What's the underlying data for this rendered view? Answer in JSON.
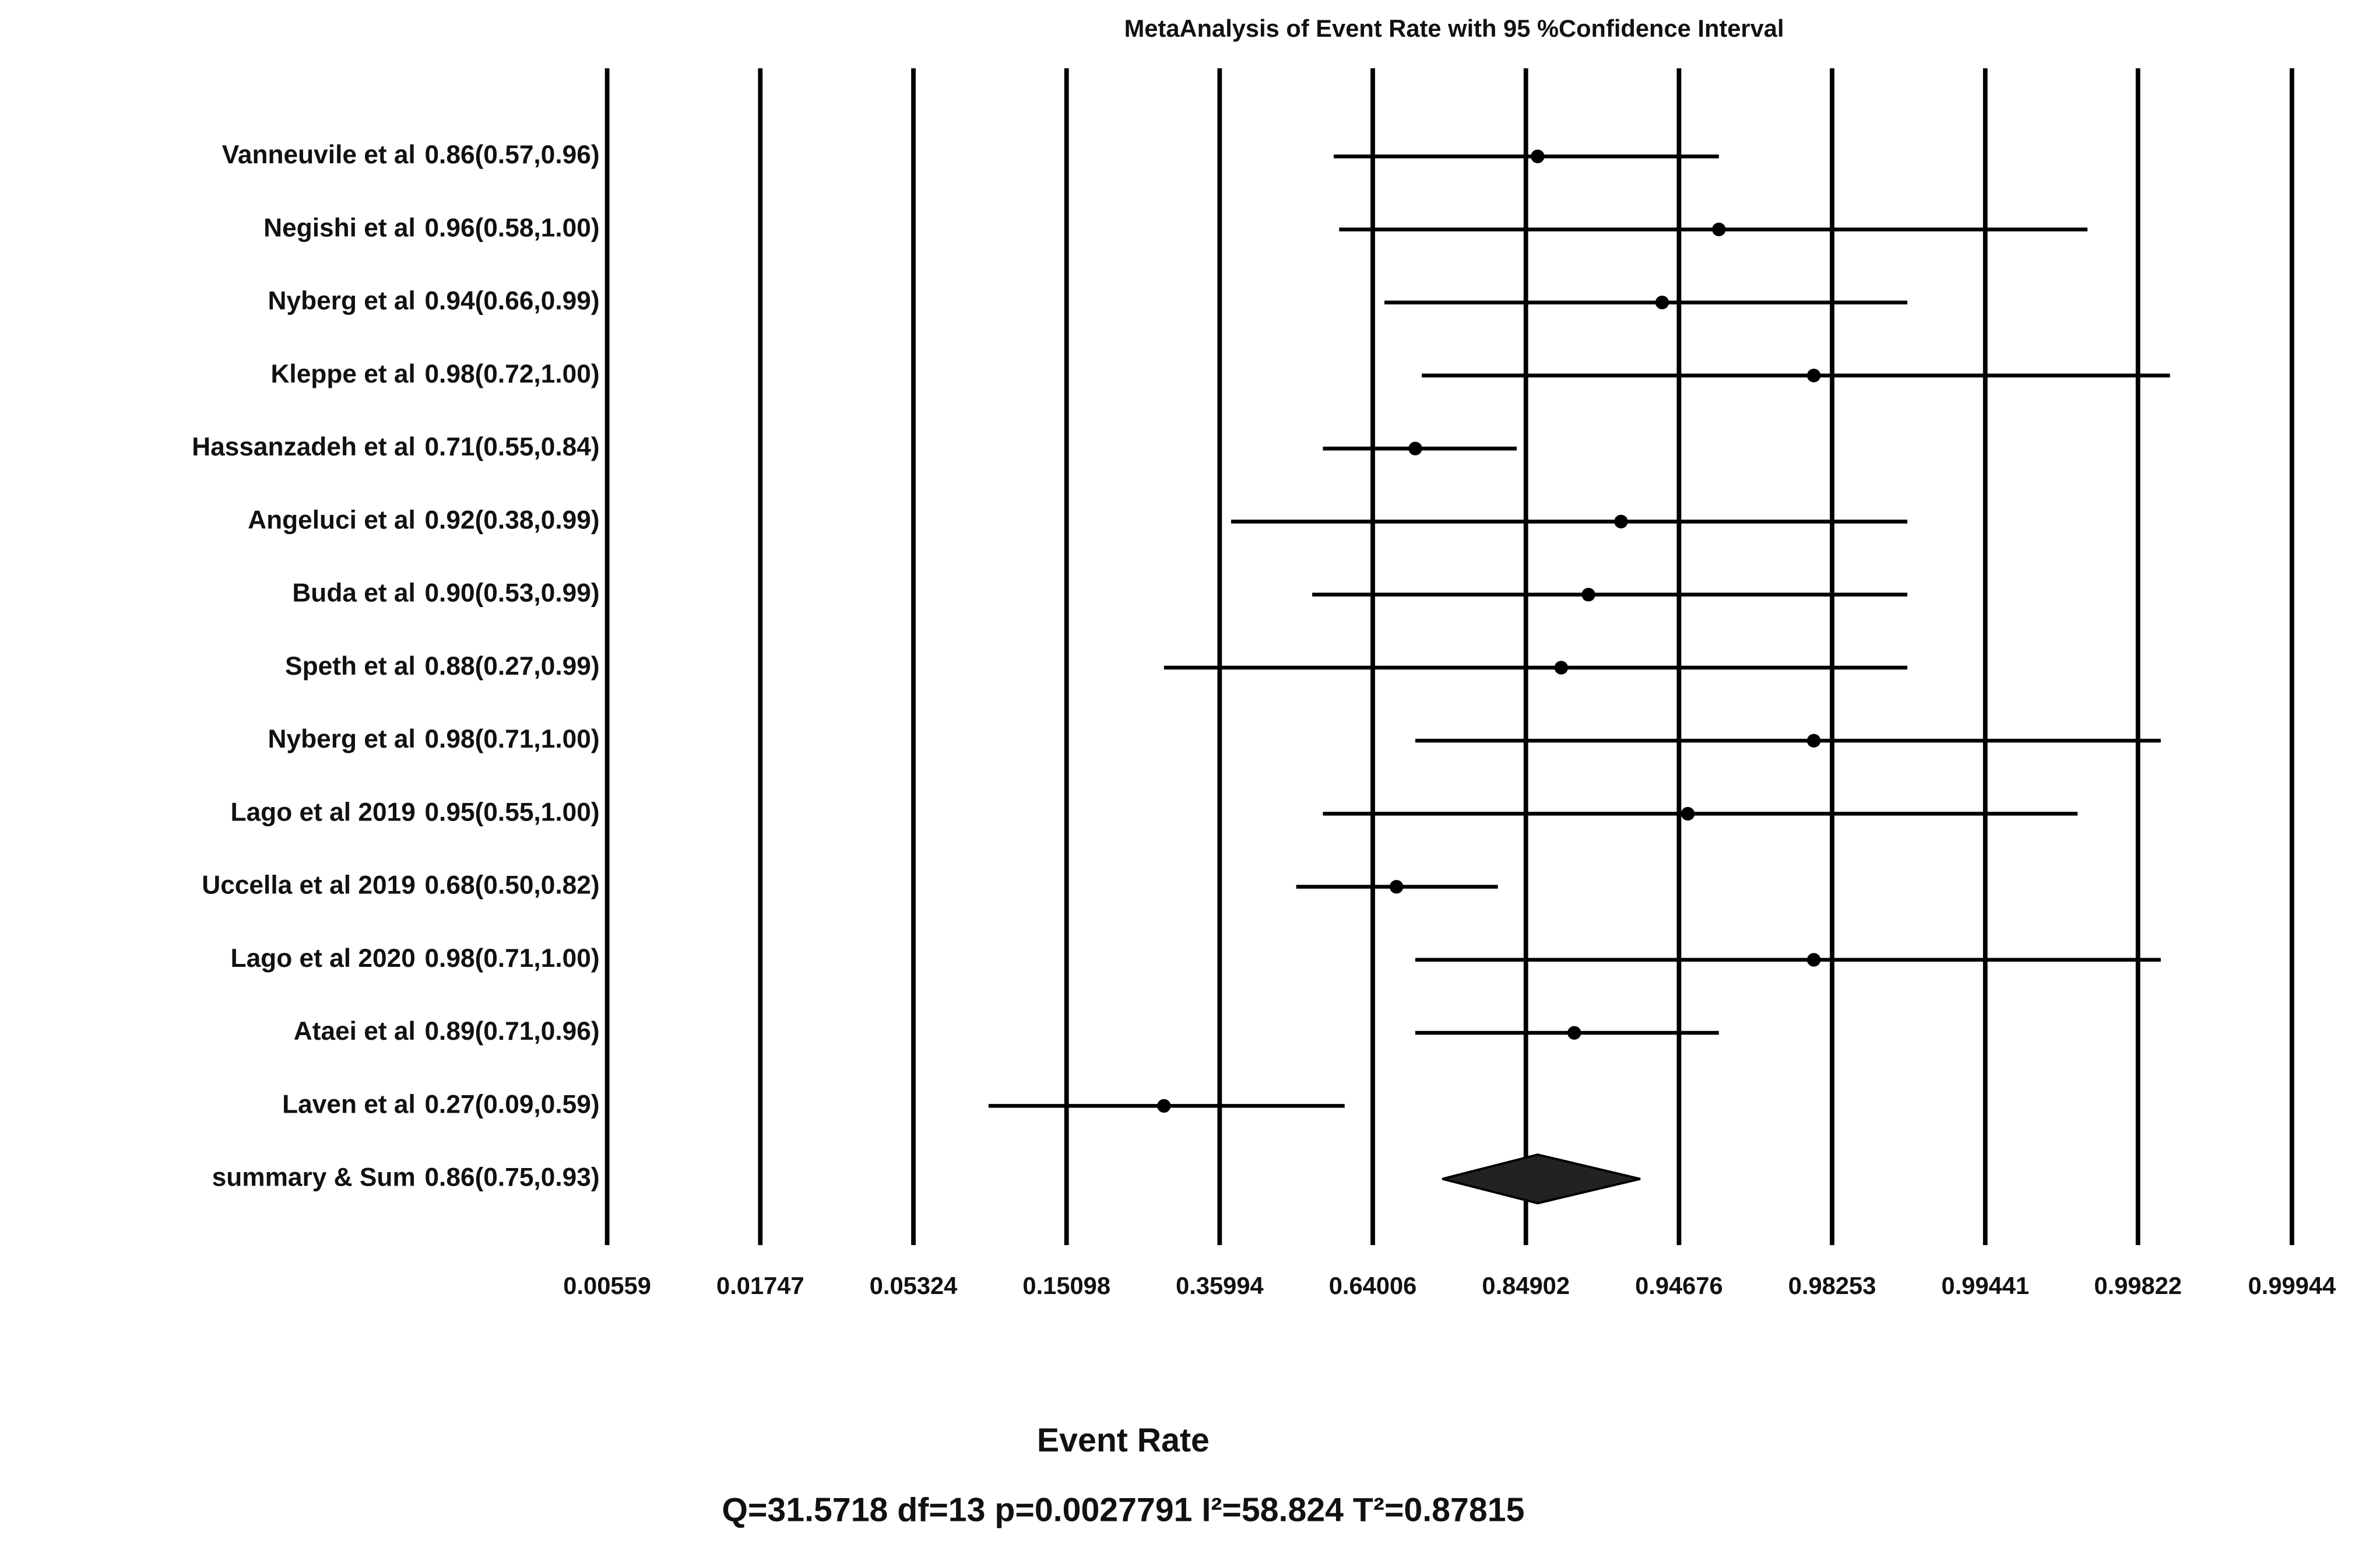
{
  "chart_data": {
    "type": "forest",
    "title": "MetaAnalysis of Event Rate with 95 %Confidence Interval",
    "x_label": "Event Rate",
    "stats": "Q=31.5718 df=13 p=0.0027791 I²=58.824 T²=0.87815",
    "x_scale": "logit",
    "xlim": [
      0.00559,
      0.99944
    ],
    "xticks": [
      0.00559,
      0.01747,
      0.05324,
      0.15098,
      0.35994,
      0.64006,
      0.84902,
      0.94676,
      0.98253,
      0.99441,
      0.99822,
      0.99944
    ],
    "grid": true,
    "color": "#000000",
    "categories": [
      "Vanneuvile et al",
      "Negishi et al",
      "Nyberg et al",
      "Kleppe et al",
      "Hassanzadeh et al",
      "Angeluci et al",
      "Buda et al",
      "Speth et al",
      "Nyberg et al",
      "Lago et al 2019",
      "Uccella et al 2019",
      "Lago et al 2020",
      "Ataei et al",
      "Laven et al"
    ],
    "values": [
      0.86,
      0.96,
      0.94,
      0.98,
      0.71,
      0.92,
      0.9,
      0.88,
      0.98,
      0.95,
      0.68,
      0.98,
      0.89,
      0.27
    ],
    "lower": [
      0.57,
      0.58,
      0.66,
      0.72,
      0.55,
      0.38,
      0.53,
      0.27,
      0.71,
      0.55,
      0.5,
      0.71,
      0.71,
      0.09
    ],
    "upper": [
      0.96,
      0.9974,
      0.99,
      0.9986,
      0.84,
      0.99,
      0.99,
      0.99,
      0.9985,
      0.9972,
      0.82,
      0.9985,
      0.96,
      0.59
    ],
    "value_labels": [
      "0.86(0.57,0.96)",
      "0.96(0.58,1.00)",
      "0.94(0.66,0.99)",
      "0.98(0.72,1.00)",
      "0.71(0.55,0.84)",
      "0.92(0.38,0.99)",
      "0.90(0.53,0.99)",
      "0.88(0.27,0.99)",
      "0.98(0.71,1.00)",
      "0.95(0.55,1.00)",
      "0.68(0.50,0.82)",
      "0.98(0.71,1.00)",
      "0.89(0.71,0.96)",
      "0.27(0.09,0.59)"
    ],
    "summary": {
      "label": "summary & Sum",
      "value": 0.86,
      "lower": 0.75,
      "upper": 0.93,
      "value_label": "0.86(0.75,0.93)"
    }
  }
}
